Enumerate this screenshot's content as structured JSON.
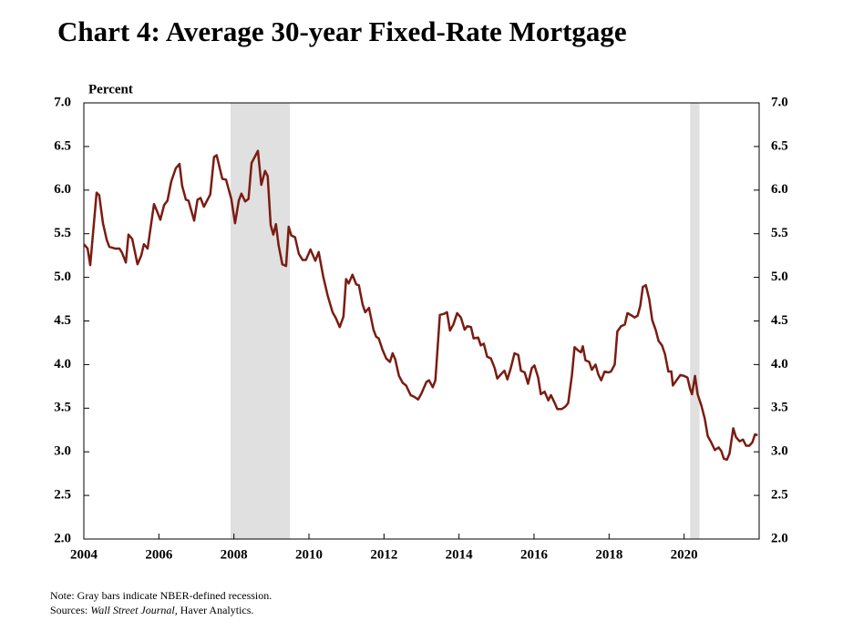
{
  "chart_data": {
    "type": "line",
    "title": "Chart 4: Average 30-year Fixed-Rate Mortgage",
    "y_label": "Percent",
    "note": "Note: Gray bars indicate NBER-defined recession.",
    "sources": {
      "prefix": "Sources:",
      "italic": "Wall Street Journal,",
      "rest": "Haver Analytics."
    },
    "xlim": [
      2004,
      2022
    ],
    "xticks": [
      2004,
      2006,
      2008,
      2010,
      2012,
      2014,
      2016,
      2018,
      2020
    ],
    "ylim": [
      2,
      7
    ],
    "yticks": [
      {
        "value": 2,
        "label": "2.0"
      },
      {
        "value": 2.5,
        "label": "2.5"
      },
      {
        "value": 3,
        "label": "3.0"
      },
      {
        "value": 3.5,
        "label": "3.5"
      },
      {
        "value": 4,
        "label": "4.0"
      },
      {
        "value": 4.5,
        "label": "4.5"
      },
      {
        "value": 5,
        "label": "5.0"
      },
      {
        "value": 5.5,
        "label": "5.5"
      },
      {
        "value": 6,
        "label": "6.0"
      },
      {
        "value": 6.5,
        "label": "6.5"
      },
      {
        "value": 7,
        "label": "7.0"
      }
    ],
    "y2lim": [
      2,
      7
    ],
    "y2ticks": [
      {
        "value": 2,
        "label": "2.0"
      },
      {
        "value": 2.5,
        "label": "2.5"
      },
      {
        "value": 3,
        "label": "3.0"
      },
      {
        "value": 3.5,
        "label": "3.5"
      },
      {
        "value": 4,
        "label": "4.0"
      },
      {
        "value": 4.5,
        "label": "4.5"
      },
      {
        "value": 5,
        "label": "5.0"
      },
      {
        "value": 5.5,
        "label": "5.5"
      },
      {
        "value": 6,
        "label": "6.0"
      },
      {
        "value": 6.5,
        "label": "6.5"
      },
      {
        "value": 7,
        "label": "7.0"
      }
    ],
    "recessions": [
      [
        2007.91,
        2009.49
      ],
      [
        2020.16,
        2020.41
      ]
    ],
    "recession_color": "#e0e0e0",
    "x": [
      2004.0,
      2004.1,
      2004.17,
      2004.34,
      2004.41,
      2004.51,
      2004.61,
      2004.68,
      2004.83,
      2004.95,
      2005.02,
      2005.12,
      2005.19,
      2005.29,
      2005.43,
      2005.53,
      2005.6,
      2005.7,
      2005.87,
      2005.94,
      2006.04,
      2006.14,
      2006.23,
      2006.33,
      2006.45,
      2006.55,
      2006.62,
      2006.72,
      2006.79,
      2006.94,
      2007.03,
      2007.11,
      2007.2,
      2007.37,
      2007.47,
      2007.54,
      2007.69,
      2007.79,
      2007.93,
      2008.03,
      2008.13,
      2008.2,
      2008.3,
      2008.39,
      2008.47,
      2008.64,
      2008.73,
      2008.83,
      2008.9,
      2008.98,
      2009.05,
      2009.12,
      2009.19,
      2009.29,
      2009.39,
      2009.46,
      2009.53,
      2009.63,
      2009.73,
      2009.83,
      2009.92,
      2010.04,
      2010.17,
      2010.26,
      2010.38,
      2010.5,
      2010.63,
      2010.72,
      2010.82,
      2010.92,
      2010.99,
      2011.06,
      2011.16,
      2011.26,
      2011.33,
      2011.43,
      2011.5,
      2011.6,
      2011.72,
      2011.79,
      2011.86,
      2011.96,
      2012.06,
      2012.16,
      2012.23,
      2012.3,
      2012.4,
      2012.5,
      2012.59,
      2012.71,
      2012.81,
      2012.91,
      2013.0,
      2013.13,
      2013.2,
      2013.3,
      2013.37,
      2013.49,
      2013.59,
      2013.68,
      2013.76,
      2013.85,
      2013.95,
      2014.05,
      2014.15,
      2014.22,
      2014.32,
      2014.39,
      2014.51,
      2014.58,
      2014.66,
      2014.75,
      2014.85,
      2014.95,
      2015.02,
      2015.12,
      2015.21,
      2015.29,
      2015.38,
      2015.48,
      2015.58,
      2015.65,
      2015.75,
      2015.84,
      2015.94,
      2016.01,
      2016.11,
      2016.18,
      2016.28,
      2016.38,
      2016.45,
      2016.55,
      2016.62,
      2016.74,
      2016.84,
      2016.91,
      2017.01,
      2017.08,
      2017.18,
      2017.25,
      2017.3,
      2017.37,
      2017.47,
      2017.54,
      2017.64,
      2017.71,
      2017.79,
      2017.88,
      2017.98,
      2018.05,
      2018.15,
      2018.22,
      2018.32,
      2018.42,
      2018.49,
      2018.61,
      2018.68,
      2018.76,
      2018.83,
      2018.9,
      2018.98,
      2019.07,
      2019.15,
      2019.24,
      2019.32,
      2019.41,
      2019.49,
      2019.58,
      2019.66,
      2019.7,
      2019.83,
      2019.9,
      2020.0,
      2020.09,
      2020.16,
      2020.21,
      2020.29,
      2020.36,
      2020.46,
      2020.55,
      2020.63,
      2020.72,
      2020.82,
      2020.92,
      2020.99,
      2021.06,
      2021.14,
      2021.21,
      2021.31,
      2021.38,
      2021.48,
      2021.57,
      2021.65,
      2021.74,
      2021.82,
      2021.89,
      2021.96
    ],
    "series": [
      {
        "color": "#7a1c12",
        "values": [
          5.38,
          5.33,
          5.14,
          5.97,
          5.94,
          5.62,
          5.43,
          5.35,
          5.33,
          5.33,
          5.28,
          5.17,
          5.49,
          5.44,
          5.15,
          5.25,
          5.38,
          5.33,
          5.84,
          5.77,
          5.66,
          5.83,
          5.88,
          6.1,
          6.25,
          6.3,
          6.05,
          5.89,
          5.88,
          5.65,
          5.89,
          5.91,
          5.81,
          5.95,
          6.38,
          6.4,
          6.13,
          6.12,
          5.9,
          5.62,
          5.88,
          5.96,
          5.87,
          5.9,
          6.31,
          6.45,
          6.06,
          6.22,
          6.16,
          5.6,
          5.49,
          5.61,
          5.37,
          5.15,
          5.13,
          5.58,
          5.48,
          5.46,
          5.27,
          5.2,
          5.2,
          5.32,
          5.19,
          5.29,
          5.01,
          4.79,
          4.6,
          4.53,
          4.43,
          4.55,
          4.98,
          4.93,
          5.03,
          4.92,
          4.91,
          4.69,
          4.6,
          4.65,
          4.4,
          4.32,
          4.3,
          4.17,
          4.07,
          4.03,
          4.13,
          4.06,
          3.87,
          3.79,
          3.76,
          3.65,
          3.63,
          3.6,
          3.67,
          3.8,
          3.82,
          3.74,
          3.82,
          4.57,
          4.58,
          4.6,
          4.39,
          4.46,
          4.59,
          4.54,
          4.4,
          4.44,
          4.43,
          4.3,
          4.31,
          4.22,
          4.24,
          4.09,
          4.07,
          3.96,
          3.84,
          3.89,
          3.93,
          3.83,
          3.96,
          4.13,
          4.11,
          3.93,
          3.91,
          3.78,
          3.96,
          3.99,
          3.85,
          3.66,
          3.69,
          3.59,
          3.65,
          3.56,
          3.49,
          3.49,
          3.52,
          3.56,
          3.88,
          4.2,
          4.16,
          4.14,
          4.21,
          4.05,
          4.03,
          3.94,
          4.0,
          3.89,
          3.82,
          3.92,
          3.91,
          3.92,
          4.0,
          4.38,
          4.44,
          4.46,
          4.59,
          4.56,
          4.54,
          4.56,
          4.67,
          4.89,
          4.91,
          4.75,
          4.51,
          4.4,
          4.27,
          4.22,
          4.12,
          3.92,
          3.92,
          3.76,
          3.84,
          3.88,
          3.87,
          3.85,
          3.72,
          3.66,
          3.87,
          3.66,
          3.53,
          3.38,
          3.18,
          3.11,
          3.02,
          3.05,
          3.01,
          2.92,
          2.91,
          2.98,
          3.27,
          3.17,
          3.12,
          3.14,
          3.07,
          3.07,
          3.11,
          3.2,
          3.19
        ]
      }
    ]
  }
}
